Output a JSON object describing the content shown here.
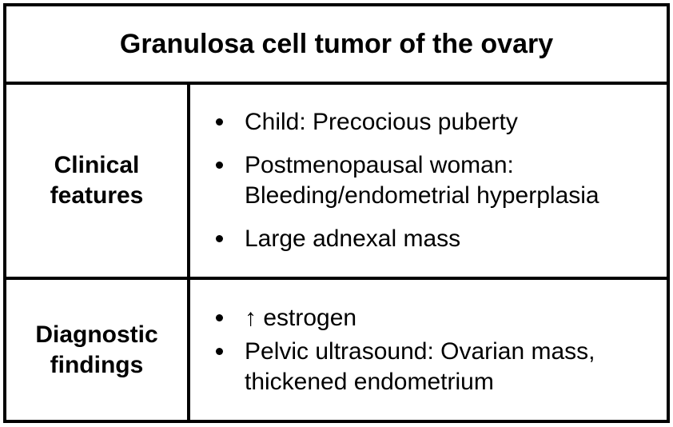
{
  "title": "Granulosa cell tumor of the ovary",
  "rows": {
    "clinical": {
      "label_lines": [
        "Clinical",
        "features"
      ],
      "bullets": [
        {
          "lines": [
            "Child: Precocious puberty"
          ]
        },
        {
          "lines": [
            "Postmenopausal woman:",
            "Bleeding/endometrial hyperplasia"
          ]
        },
        {
          "lines": [
            "Large adnexal mass"
          ]
        }
      ]
    },
    "diagnostic": {
      "label_lines": [
        "Diagnostic",
        "findings"
      ],
      "bullets": [
        {
          "lines": [
            "↑ estrogen"
          ]
        },
        {
          "lines": [
            "Pelvic ultrasound: Ovarian mass,",
            "thickened endometrium"
          ]
        }
      ]
    }
  }
}
